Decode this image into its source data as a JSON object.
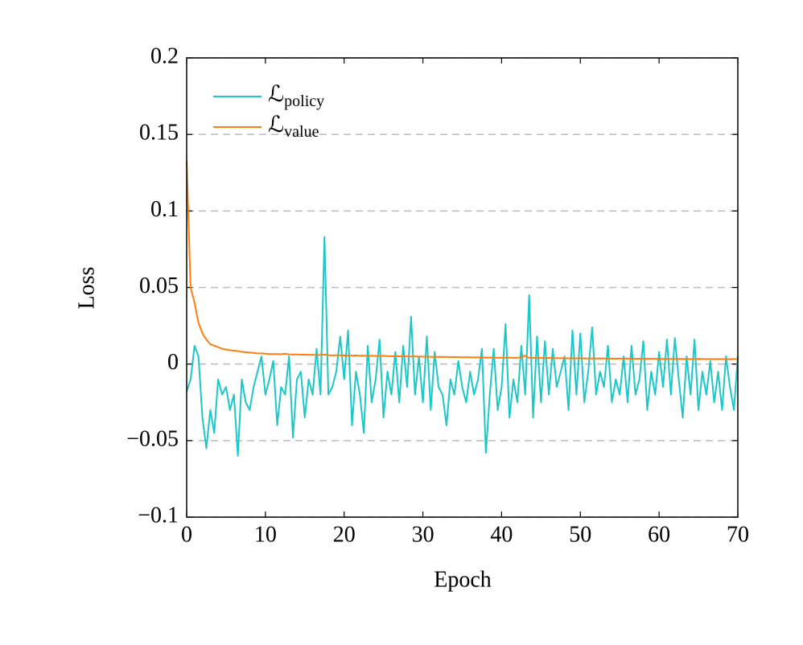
{
  "chart_data": {
    "type": "line",
    "xlabel": "Epoch",
    "ylabel": "Loss",
    "x": [
      0,
      0.5,
      1,
      1.5,
      2,
      2.5,
      3,
      3.5,
      4,
      4.5,
      5,
      5.5,
      6,
      6.5,
      7,
      7.5,
      8,
      8.5,
      9,
      9.5,
      10,
      10.5,
      11,
      11.5,
      12,
      12.5,
      13,
      13.5,
      14,
      14.5,
      15,
      15.5,
      16,
      16.5,
      17,
      17.5,
      18,
      18.5,
      19,
      19.5,
      20,
      20.5,
      21,
      21.5,
      22,
      22.5,
      23,
      23.5,
      24,
      24.5,
      25,
      25.5,
      26,
      26.5,
      27,
      27.5,
      28,
      28.5,
      29,
      29.5,
      30,
      30.5,
      31,
      31.5,
      32,
      32.5,
      33,
      33.5,
      34,
      34.5,
      35,
      35.5,
      36,
      36.5,
      37,
      37.5,
      38,
      38.5,
      39,
      39.5,
      40,
      40.5,
      41,
      41.5,
      42,
      42.5,
      43,
      43.5,
      44,
      44.5,
      45,
      45.5,
      46,
      46.5,
      47,
      47.5,
      48,
      48.5,
      49,
      49.5,
      50,
      50.5,
      51,
      51.5,
      52,
      52.5,
      53,
      53.5,
      54,
      54.5,
      55,
      55.5,
      56,
      56.5,
      57,
      57.5,
      58,
      58.5,
      59,
      59.5,
      60,
      60.5,
      61,
      61.5,
      62,
      62.5,
      63,
      63.5,
      64,
      64.5,
      65,
      65.5,
      66,
      66.5,
      67,
      67.5,
      68,
      68.5,
      69,
      69.5,
      70
    ],
    "series": [
      {
        "name": "ℒpolicy",
        "color": "#1cc7c9",
        "values": [
          -0.018,
          -0.01,
          0.012,
          0.005,
          -0.035,
          -0.055,
          -0.03,
          -0.045,
          -0.01,
          -0.02,
          -0.015,
          -0.03,
          -0.02,
          -0.06,
          -0.01,
          -0.025,
          -0.03,
          -0.015,
          -0.005,
          0.005,
          -0.02,
          -0.01,
          0.002,
          -0.04,
          -0.015,
          -0.02,
          0.005,
          -0.048,
          -0.01,
          -0.005,
          -0.035,
          -0.01,
          -0.02,
          0.01,
          -0.02,
          0.083,
          -0.02,
          -0.015,
          -0.005,
          0.018,
          -0.01,
          0.022,
          -0.04,
          -0.005,
          -0.02,
          -0.045,
          0.012,
          -0.025,
          -0.01,
          0.016,
          -0.035,
          -0.005,
          -0.02,
          0.008,
          -0.025,
          0.012,
          -0.015,
          0.031,
          -0.02,
          0.005,
          -0.025,
          0.018,
          -0.03,
          0.008,
          -0.015,
          -0.02,
          -0.04,
          -0.01,
          -0.02,
          0.002,
          -0.015,
          -0.025,
          -0.005,
          -0.02,
          -0.01,
          0.01,
          -0.058,
          -0.02,
          0.01,
          -0.03,
          -0.015,
          0.026,
          -0.035,
          -0.01,
          -0.025,
          0.012,
          -0.02,
          0.045,
          -0.035,
          0.018,
          -0.025,
          0.015,
          -0.02,
          0.01,
          -0.015,
          -0.005,
          0.005,
          -0.03,
          0.022,
          -0.02,
          0.02,
          -0.025,
          -0.005,
          0.024,
          -0.02,
          -0.005,
          -0.015,
          0.012,
          -0.025,
          -0.01,
          -0.02,
          0.005,
          -0.025,
          0.012,
          -0.02,
          -0.01,
          0.015,
          -0.03,
          -0.005,
          -0.02,
          0.008,
          -0.015,
          0.016,
          -0.02,
          0.017,
          -0.01,
          -0.035,
          0.005,
          -0.02,
          0.016,
          -0.03,
          -0.005,
          -0.02,
          0.002,
          -0.025,
          -0.005,
          -0.03,
          0.005,
          -0.015,
          -0.03,
          0.005
        ]
      },
      {
        "name": "ℒvalue",
        "color": "#ff7f0e",
        "values": [
          0.133,
          0.05,
          0.04,
          0.027,
          0.02,
          0.016,
          0.013,
          0.012,
          0.011,
          0.01,
          0.0095,
          0.009,
          0.0088,
          0.0085,
          0.008,
          0.0078,
          0.0075,
          0.0073,
          0.007,
          0.007,
          0.0068,
          0.0066,
          0.0065,
          0.0066,
          0.0064,
          0.0068,
          0.0063,
          0.0062,
          0.0063,
          0.0061,
          0.0062,
          0.006,
          0.0061,
          0.0059,
          0.006,
          0.0062,
          0.0058,
          0.0057,
          0.0058,
          0.0057,
          0.0056,
          0.0056,
          0.0055,
          0.0056,
          0.0054,
          0.0055,
          0.0053,
          0.0054,
          0.0053,
          0.0052,
          0.0054,
          0.0052,
          0.0051,
          0.0052,
          0.005,
          0.0051,
          0.005,
          0.0049,
          0.005,
          0.0049,
          0.0048,
          0.0048,
          0.0047,
          0.0048,
          0.0046,
          0.0047,
          0.0046,
          0.0045,
          0.0046,
          0.0045,
          0.0044,
          0.0045,
          0.0044,
          0.0043,
          0.0044,
          0.0043,
          0.0042,
          0.0043,
          0.0042,
          0.0041,
          0.0042,
          0.0041,
          0.0042,
          0.004,
          0.0041,
          0.0045,
          0.0055,
          0.004,
          0.0041,
          0.0039,
          0.004,
          0.0039,
          0.004,
          0.0038,
          0.0039,
          0.0038,
          0.0039,
          0.0037,
          0.0038,
          0.0037,
          0.0038,
          0.0037,
          0.0036,
          0.0037,
          0.0036,
          0.0037,
          0.0036,
          0.0035,
          0.0036,
          0.0035,
          0.0036,
          0.0035,
          0.0036,
          0.0035,
          0.0034,
          0.0035,
          0.0034,
          0.0035,
          0.0034,
          0.0035,
          0.0034,
          0.0034,
          0.0033,
          0.0034,
          0.0033,
          0.0034,
          0.0033,
          0.0034,
          0.0032,
          0.0033,
          0.0034,
          0.0033,
          0.0032,
          0.0033,
          0.0032,
          0.0033,
          0.0032,
          0.0033,
          0.0032,
          0.0033,
          0.0032
        ]
      }
    ],
    "xlim": [
      0,
      70
    ],
    "xticks": [
      0,
      10,
      20,
      30,
      40,
      50,
      60,
      70
    ],
    "ylim": [
      -0.1,
      0.2
    ],
    "yticks": [
      {
        "value": -0.1,
        "label": "−0.1"
      },
      {
        "value": -0.05,
        "label": "−0.05"
      },
      0,
      0.05,
      0.1,
      0.15,
      0.2
    ],
    "grid": true,
    "legend": "upper left"
  }
}
